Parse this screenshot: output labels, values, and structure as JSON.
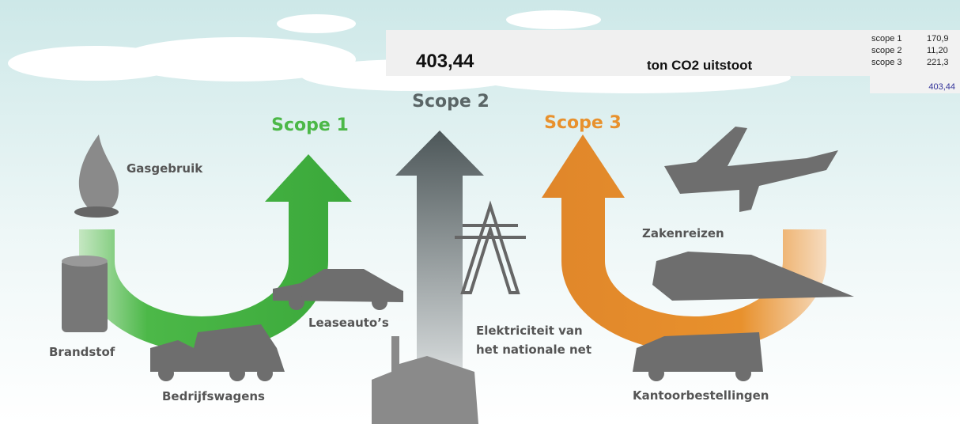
{
  "header": {
    "total": "403,44",
    "unit": "ton CO2 uitstoot"
  },
  "summary": {
    "rows": [
      [
        "scope 1",
        "170,9"
      ],
      [
        "scope 2",
        "11,20"
      ],
      [
        "scope 3",
        "221,3"
      ]
    ],
    "total": "403,44"
  },
  "scopes": [
    "Scope 1",
    "Scope 2",
    "Scope 3"
  ],
  "labels": {
    "gas": "Gasgebruik",
    "fuel": "Brandstof",
    "vans": "Bedrijfswagens",
    "lease": "Leaseauto’s",
    "power": [
      "Elektriciteit van",
      "het nationale net"
    ],
    "travel": "Zakenreizen",
    "orders": "Kantoorbestellingen"
  }
}
